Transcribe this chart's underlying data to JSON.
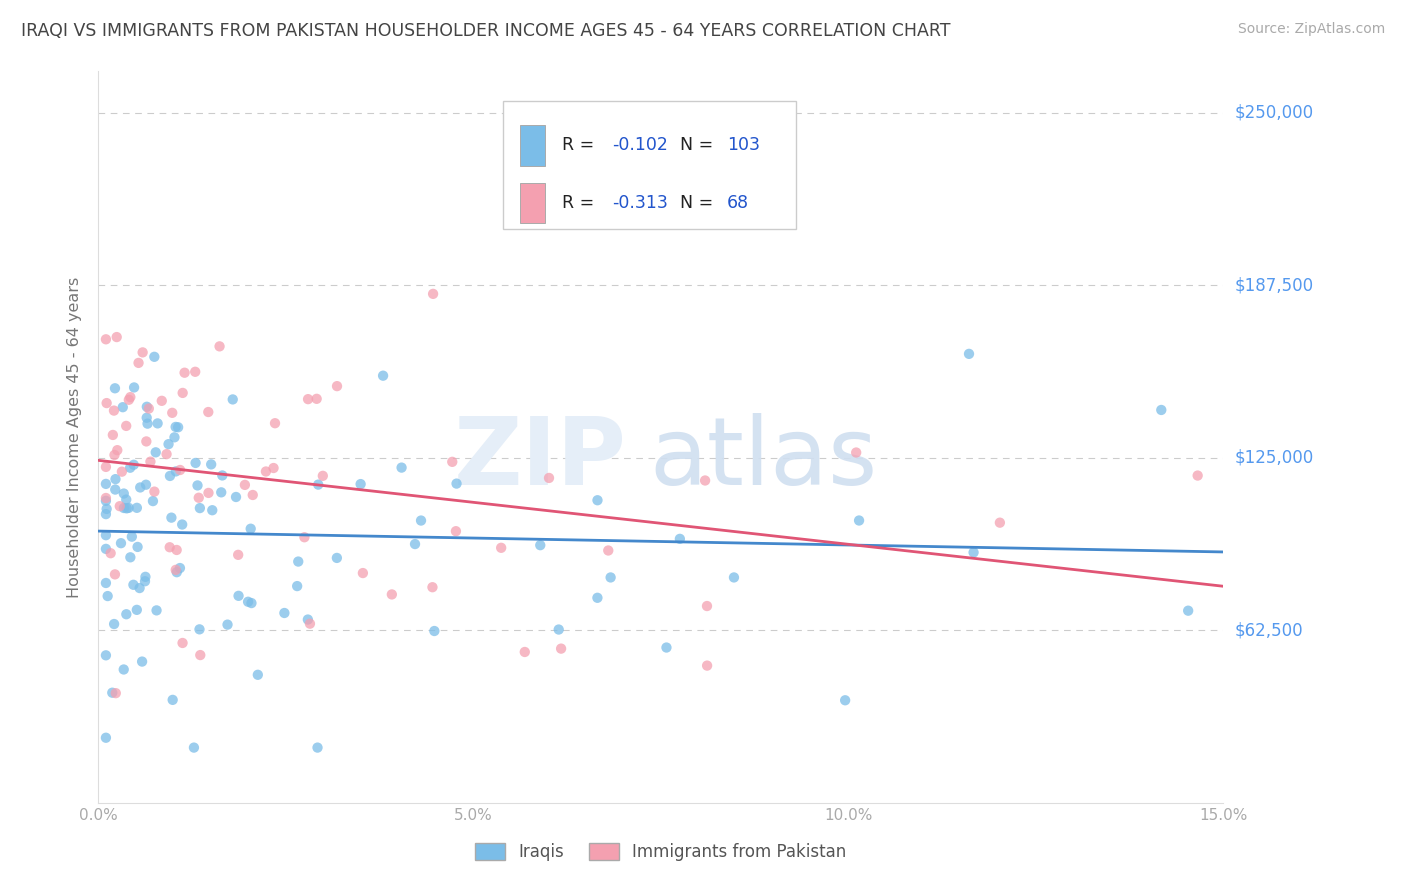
{
  "title": "IRAQI VS IMMIGRANTS FROM PAKISTAN HOUSEHOLDER INCOME AGES 45 - 64 YEARS CORRELATION CHART",
  "source": "Source: ZipAtlas.com",
  "ylabel": "Householder Income Ages 45 - 64 years",
  "xlim": [
    0.0,
    0.15
  ],
  "ylim": [
    0,
    265000
  ],
  "ytick_vals": [
    62500,
    125000,
    187500,
    250000
  ],
  "ytick_labels": [
    "$62,500",
    "$125,000",
    "$187,500",
    "$250,000"
  ],
  "xticks": [
    0.0,
    0.05,
    0.1,
    0.15
  ],
  "xtick_labels": [
    "0.0%",
    "5.0%",
    "10.0%",
    "15.0%"
  ],
  "series1_name": "Iraqis",
  "series1_color": "#7bbde8",
  "series1_R": -0.102,
  "series1_N": 103,
  "series2_name": "Immigrants from Pakistan",
  "series2_color": "#f4a0b0",
  "series2_R": -0.313,
  "series2_N": 68,
  "line1_color": "#4488cc",
  "line2_color": "#e05575",
  "background_color": "#ffffff",
  "grid_color": "#cccccc",
  "title_color": "#444444",
  "axis_label_color": "#777777",
  "right_label_color": "#5599ee",
  "legend_text_color": "#222222",
  "legend_value_color": "#2255cc",
  "source_color": "#aaaaaa",
  "watermark_color": "#e5eef8",
  "seed": 7
}
